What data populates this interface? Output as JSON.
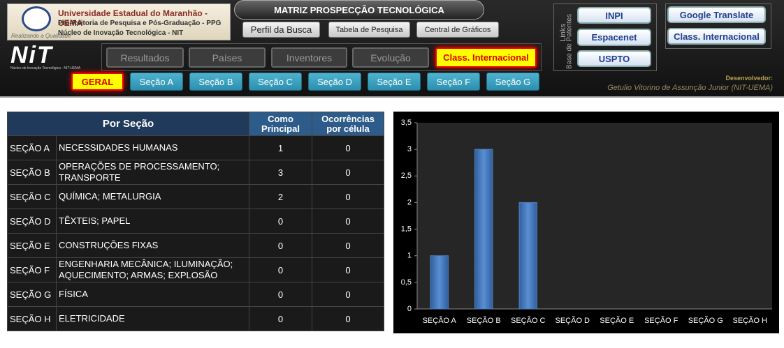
{
  "header": {
    "university": "Universidade Estadual do Maranhão - UEMA",
    "proreitoria": "Pró-Reitoria de Pesquisa e Pós-Graduação - PPG",
    "nucleo": "Núcleo de Inovação Tecnológica - NIT",
    "slogan": "Realizando a Qualidade",
    "logo_text": "NiT",
    "logo_caption": "Núcleo de Inovação Tecnológica - NIT-UEMA",
    "title": "MATRIZ PROSPECÇÃO TECNOLÓGICA",
    "top_buttons": [
      "Perfil da Busca",
      "Tabela  de Pesquisa",
      "Central de Gráficos"
    ],
    "nav_buttons": [
      "Resultados",
      "Países",
      "Inventores",
      "Evolução",
      "Class. Internacional"
    ],
    "section_buttons": [
      "GERAL",
      "Seção A",
      "Seção B",
      "Seção C",
      "Seção D",
      "Seção E",
      "Seção F",
      "Seção G"
    ],
    "links_label": "Links",
    "patents_label": "Base de Patentes",
    "patent_buttons": [
      "INPI",
      "Espacenet",
      "USPTO"
    ],
    "tool_buttons": [
      "Google Translate",
      "Class. Internacional"
    ],
    "developer_label": "Desenvolvedor:",
    "developer": "Getulio Vitorino de Assunção Junior (NIT-UEMA)"
  },
  "table": {
    "columns": [
      "Por Seção",
      "Como Principal",
      "Ocorrências por célula"
    ],
    "rows": [
      [
        "SEÇÃO A",
        "NECESSIDADES HUMANAS",
        1,
        0
      ],
      [
        "SEÇÃO B",
        "OPERAÇÕES DE PROCESSAMENTO; TRANSPORTE",
        3,
        0
      ],
      [
        "SEÇÃO C",
        "QUÍMICA; METALURGIA",
        2,
        0
      ],
      [
        "SEÇÃO D",
        "TÊXTEIS; PAPEL",
        0,
        0
      ],
      [
        "SEÇÃO E",
        "CONSTRUÇÕES FIXAS",
        0,
        0
      ],
      [
        "SEÇÃO F",
        "ENGENHARIA MECÂNICA; ILUMINAÇÃO; AQUECIMENTO; ARMAS; EXPLOSÃO",
        0,
        0
      ],
      [
        "SEÇÃO G",
        "FÍSICA",
        0,
        0
      ],
      [
        "SEÇÃO H",
        "ELETRICIDADE",
        0,
        0
      ]
    ]
  },
  "chart_data": {
    "type": "bar",
    "categories": [
      "SEÇÃO A",
      "SEÇÃO B",
      "SEÇÃO C",
      "SEÇÃO D",
      "SEÇÃO E",
      "SEÇÃO F",
      "SEÇÃO G",
      "SEÇÃO H"
    ],
    "values": [
      1,
      3,
      2,
      0,
      0,
      0,
      0,
      0
    ],
    "color": "#4f81bd",
    "ylim": [
      0,
      3.5
    ],
    "yticks": [
      0,
      {
        "value": 0.5,
        "label": "0,5"
      },
      1,
      {
        "value": 1.5,
        "label": "1,5"
      },
      2,
      {
        "value": 2.5,
        "label": "2,5"
      },
      3,
      {
        "value": 3.5,
        "label": "3,5"
      }
    ]
  }
}
